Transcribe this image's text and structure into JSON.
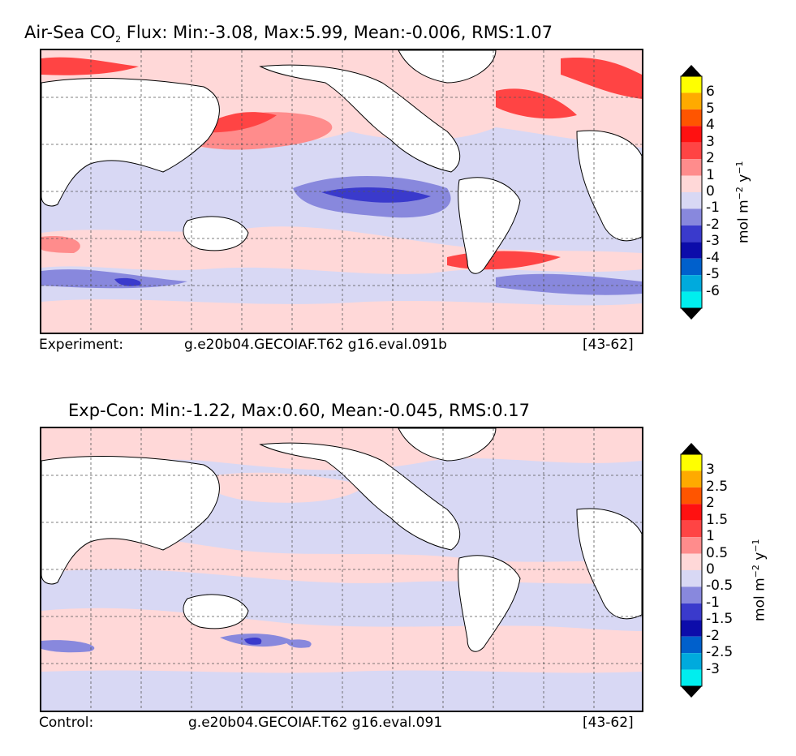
{
  "panels": [
    {
      "title_prefix": "Air-Sea CO",
      "title_sub": "2",
      "title_suffix": " Flux: Min:-3.08, Max:5.99, Mean:-0.006, RMS:1.07",
      "footer_left": "Experiment:",
      "footer_center": "g.e20b04.GECOIAF.T62 g16.eval.091b",
      "footer_right": "[43-62]",
      "colorbar": {
        "ticks": [
          "6",
          "5",
          "4",
          "3",
          "2",
          "1",
          "0",
          "-1",
          "-2",
          "-3",
          "-4",
          "-5",
          "-6"
        ],
        "unit_prefix": "mol m",
        "unit_exp1": "−2",
        "unit_mid": " y",
        "unit_exp2": "−1"
      }
    },
    {
      "title": "Exp-Con: Min:-1.22, Max:0.60, Mean:-0.045, RMS:0.17",
      "footer_left": "Control:",
      "footer_center": "g.e20b04.GECOIAF.T62 g16.eval.091",
      "footer_right": "[43-62]",
      "colorbar": {
        "ticks": [
          "3",
          "2.5",
          "2",
          "1.5",
          "1",
          "0.5",
          "0",
          "-0.5",
          "-1",
          "-1.5",
          "-2",
          "-2.5",
          "-3"
        ],
        "unit_prefix": "mol m",
        "unit_exp1": "−2",
        "unit_mid": " y",
        "unit_exp2": "−1"
      }
    }
  ],
  "colors": {
    "scale_top_to_bottom": [
      "#ffff00",
      "#ffaa00",
      "#ff5500",
      "#ff1111",
      "#ff4444",
      "#ff8c8c",
      "#ffd8d8",
      "#d8d8f4",
      "#8888dd",
      "#3a3acc",
      "#0c0caa",
      "#0060cc",
      "#00aadd",
      "#00eeee"
    ],
    "land": "#ffffff",
    "grid": "#555555"
  }
}
